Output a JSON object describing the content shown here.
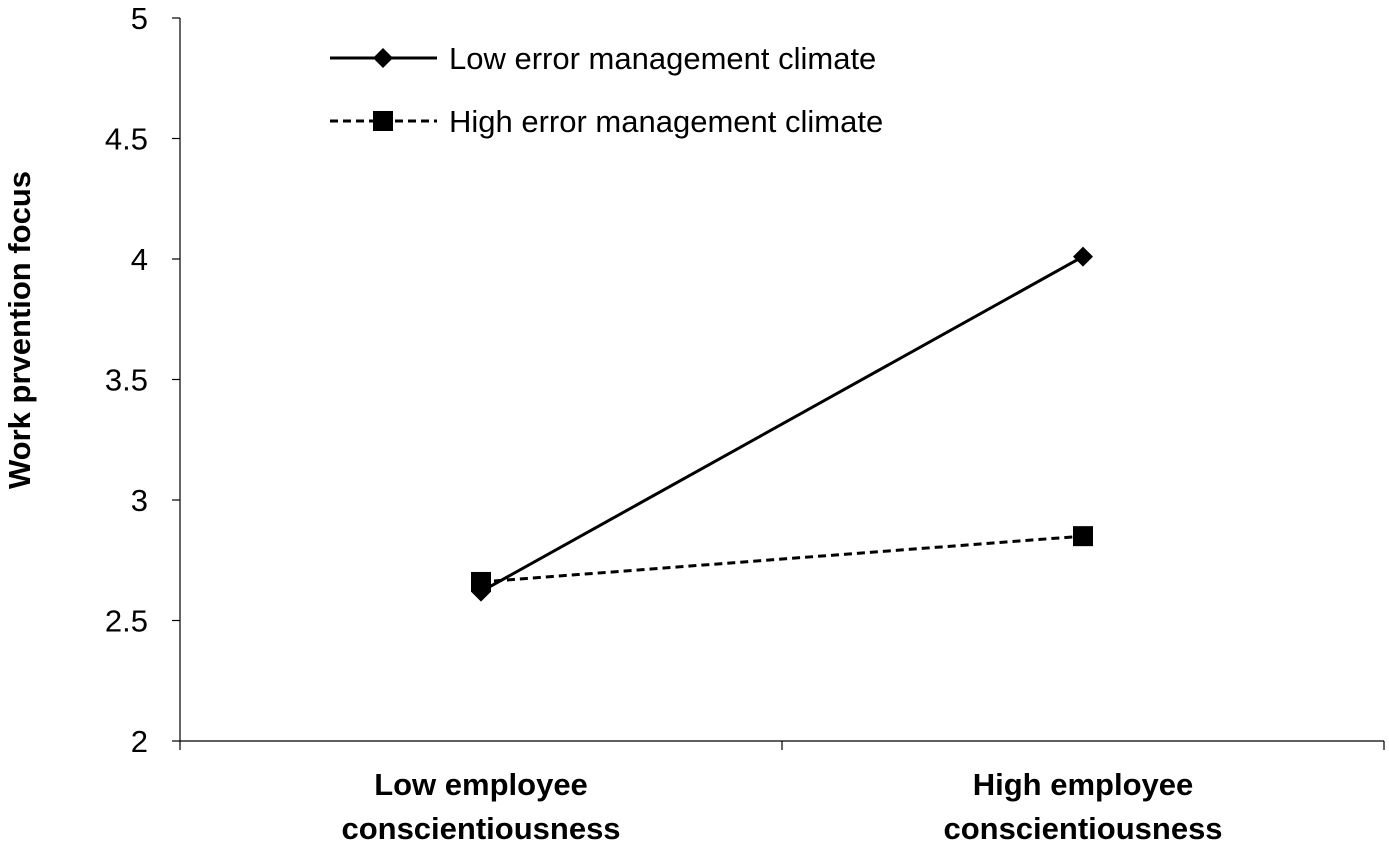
{
  "chart_data": {
    "type": "line",
    "categories": [
      [
        "Low employee",
        "conscientiousness"
      ],
      [
        "High employee",
        "conscientiousness"
      ]
    ],
    "ylabel": "Work prvention focus",
    "ylim": [
      2,
      5
    ],
    "yticks": [
      "2",
      "2.5",
      "3",
      "3.5",
      "4",
      "4.5",
      "5"
    ],
    "grid": false,
    "legend_position": "top-left",
    "series": [
      {
        "name": "Low error management climate",
        "values": [
          2.62,
          4.01
        ],
        "marker": "diamond",
        "line_style": "solid",
        "color": "#000000"
      },
      {
        "name": "High error management climate",
        "values": [
          2.66,
          2.85
        ],
        "marker": "square",
        "line_style": "dashed",
        "color": "#000000"
      }
    ]
  }
}
